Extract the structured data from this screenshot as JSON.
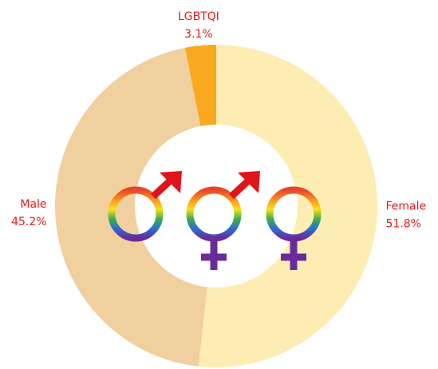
{
  "chart_data": {
    "type": "donut",
    "categories": [
      "Female",
      "Male",
      "LGBTQI"
    ],
    "values": [
      51.8,
      45.2,
      3.1
    ],
    "value_labels": [
      "51.8%",
      "45.2%",
      "3.1%"
    ],
    "colors": [
      "#feedb2",
      "#f0d09e",
      "#f9a91f"
    ],
    "label_color": "#e8191b"
  }
}
